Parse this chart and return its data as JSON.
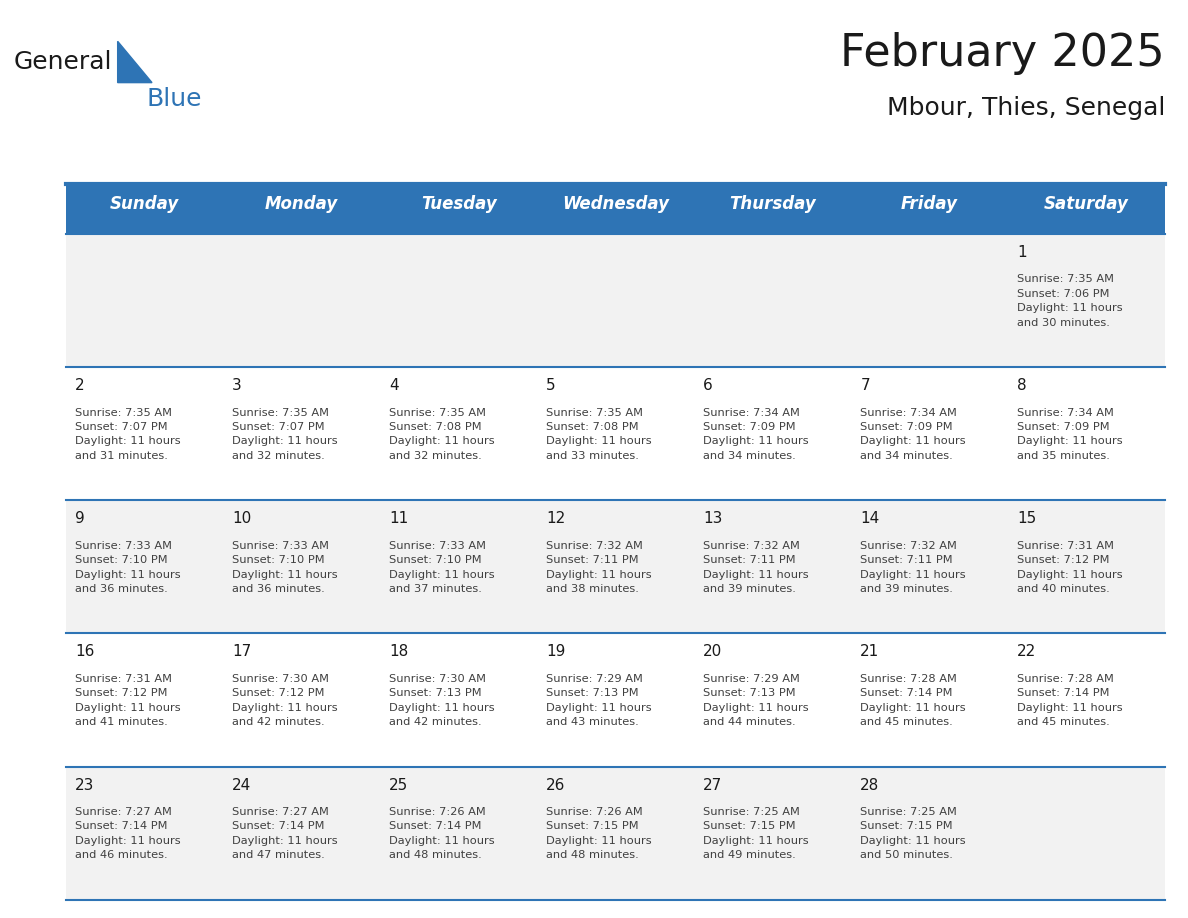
{
  "title": "February 2025",
  "subtitle": "Mbour, Thies, Senegal",
  "header_bg_color": "#2E74B5",
  "header_text_color": "#FFFFFF",
  "cell_bg_color": "#FFFFFF",
  "alt_row_bg_color": "#F2F2F2",
  "grid_line_color": "#2E74B5",
  "day_headers": [
    "Sunday",
    "Monday",
    "Tuesday",
    "Wednesday",
    "Thursday",
    "Friday",
    "Saturday"
  ],
  "title_color": "#1A1A1A",
  "subtitle_color": "#1A1A1A",
  "day_num_color": "#1A1A1A",
  "cell_text_color": "#404040",
  "logo_general_color": "#1A1A1A",
  "logo_blue_color": "#2E74B5",
  "weeks": [
    [
      {
        "day": "",
        "info": ""
      },
      {
        "day": "",
        "info": ""
      },
      {
        "day": "",
        "info": ""
      },
      {
        "day": "",
        "info": ""
      },
      {
        "day": "",
        "info": ""
      },
      {
        "day": "",
        "info": ""
      },
      {
        "day": "1",
        "info": "Sunrise: 7:35 AM\nSunset: 7:06 PM\nDaylight: 11 hours\nand 30 minutes."
      }
    ],
    [
      {
        "day": "2",
        "info": "Sunrise: 7:35 AM\nSunset: 7:07 PM\nDaylight: 11 hours\nand 31 minutes."
      },
      {
        "day": "3",
        "info": "Sunrise: 7:35 AM\nSunset: 7:07 PM\nDaylight: 11 hours\nand 32 minutes."
      },
      {
        "day": "4",
        "info": "Sunrise: 7:35 AM\nSunset: 7:08 PM\nDaylight: 11 hours\nand 32 minutes."
      },
      {
        "day": "5",
        "info": "Sunrise: 7:35 AM\nSunset: 7:08 PM\nDaylight: 11 hours\nand 33 minutes."
      },
      {
        "day": "6",
        "info": "Sunrise: 7:34 AM\nSunset: 7:09 PM\nDaylight: 11 hours\nand 34 minutes."
      },
      {
        "day": "7",
        "info": "Sunrise: 7:34 AM\nSunset: 7:09 PM\nDaylight: 11 hours\nand 34 minutes."
      },
      {
        "day": "8",
        "info": "Sunrise: 7:34 AM\nSunset: 7:09 PM\nDaylight: 11 hours\nand 35 minutes."
      }
    ],
    [
      {
        "day": "9",
        "info": "Sunrise: 7:33 AM\nSunset: 7:10 PM\nDaylight: 11 hours\nand 36 minutes."
      },
      {
        "day": "10",
        "info": "Sunrise: 7:33 AM\nSunset: 7:10 PM\nDaylight: 11 hours\nand 36 minutes."
      },
      {
        "day": "11",
        "info": "Sunrise: 7:33 AM\nSunset: 7:10 PM\nDaylight: 11 hours\nand 37 minutes."
      },
      {
        "day": "12",
        "info": "Sunrise: 7:32 AM\nSunset: 7:11 PM\nDaylight: 11 hours\nand 38 minutes."
      },
      {
        "day": "13",
        "info": "Sunrise: 7:32 AM\nSunset: 7:11 PM\nDaylight: 11 hours\nand 39 minutes."
      },
      {
        "day": "14",
        "info": "Sunrise: 7:32 AM\nSunset: 7:11 PM\nDaylight: 11 hours\nand 39 minutes."
      },
      {
        "day": "15",
        "info": "Sunrise: 7:31 AM\nSunset: 7:12 PM\nDaylight: 11 hours\nand 40 minutes."
      }
    ],
    [
      {
        "day": "16",
        "info": "Sunrise: 7:31 AM\nSunset: 7:12 PM\nDaylight: 11 hours\nand 41 minutes."
      },
      {
        "day": "17",
        "info": "Sunrise: 7:30 AM\nSunset: 7:12 PM\nDaylight: 11 hours\nand 42 minutes."
      },
      {
        "day": "18",
        "info": "Sunrise: 7:30 AM\nSunset: 7:13 PM\nDaylight: 11 hours\nand 42 minutes."
      },
      {
        "day": "19",
        "info": "Sunrise: 7:29 AM\nSunset: 7:13 PM\nDaylight: 11 hours\nand 43 minutes."
      },
      {
        "day": "20",
        "info": "Sunrise: 7:29 AM\nSunset: 7:13 PM\nDaylight: 11 hours\nand 44 minutes."
      },
      {
        "day": "21",
        "info": "Sunrise: 7:28 AM\nSunset: 7:14 PM\nDaylight: 11 hours\nand 45 minutes."
      },
      {
        "day": "22",
        "info": "Sunrise: 7:28 AM\nSunset: 7:14 PM\nDaylight: 11 hours\nand 45 minutes."
      }
    ],
    [
      {
        "day": "23",
        "info": "Sunrise: 7:27 AM\nSunset: 7:14 PM\nDaylight: 11 hours\nand 46 minutes."
      },
      {
        "day": "24",
        "info": "Sunrise: 7:27 AM\nSunset: 7:14 PM\nDaylight: 11 hours\nand 47 minutes."
      },
      {
        "day": "25",
        "info": "Sunrise: 7:26 AM\nSunset: 7:14 PM\nDaylight: 11 hours\nand 48 minutes."
      },
      {
        "day": "26",
        "info": "Sunrise: 7:26 AM\nSunset: 7:15 PM\nDaylight: 11 hours\nand 48 minutes."
      },
      {
        "day": "27",
        "info": "Sunrise: 7:25 AM\nSunset: 7:15 PM\nDaylight: 11 hours\nand 49 minutes."
      },
      {
        "day": "28",
        "info": "Sunrise: 7:25 AM\nSunset: 7:15 PM\nDaylight: 11 hours\nand 50 minutes."
      },
      {
        "day": "",
        "info": ""
      }
    ]
  ]
}
